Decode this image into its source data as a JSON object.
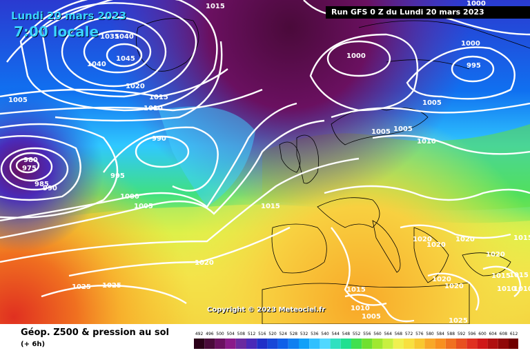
{
  "header": {
    "date": "Lundi 20 mars 2023",
    "time": "7:00 locale",
    "run": "Run GFS 0 Z du Lundi 20 mars 2023"
  },
  "copyright": "Copyright © 2023 Meteociel.fr",
  "footer": {
    "title": "Géop. Z500 & pression au sol",
    "subtitle": "(+ 6h)"
  },
  "legend": {
    "values": [
      "492",
      "496",
      "500",
      "504",
      "508",
      "512",
      "516",
      "520",
      "524",
      "528",
      "532",
      "536",
      "540",
      "544",
      "548",
      "552",
      "556",
      "560",
      "564",
      "568",
      "572",
      "576",
      "580",
      "584",
      "588",
      "592",
      "596",
      "600",
      "604",
      "608",
      "612"
    ],
    "colors": [
      "#2a0018",
      "#4a0a3a",
      "#6a1060",
      "#8a1a8a",
      "#6a2aa0",
      "#4a2ab8",
      "#2030c8",
      "#1848d8",
      "#1060e8",
      "#1080f0",
      "#10a0f8",
      "#30c0ff",
      "#50d8ff",
      "#30e0c0",
      "#20e090",
      "#40e050",
      "#70e030",
      "#a0e830",
      "#c8f040",
      "#f0f050",
      "#f8e040",
      "#f8c830",
      "#f8a828",
      "#f89020",
      "#f07020",
      "#e85020",
      "#e03020",
      "#d01818",
      "#b01010",
      "#900808",
      "#700000"
    ]
  },
  "isobar_labels": [
    {
      "text": "1015"
    },
    {
      "text": "1035"
    },
    {
      "text": "1040"
    },
    {
      "text": "1045"
    },
    {
      "text": "1040"
    },
    {
      "text": "1020"
    },
    {
      "text": "1015"
    },
    {
      "text": "1010"
    },
    {
      "text": "1005"
    },
    {
      "text": "990"
    },
    {
      "text": "980"
    },
    {
      "text": "975"
    },
    {
      "text": "985"
    },
    {
      "text": "990"
    },
    {
      "text": "995"
    },
    {
      "text": "1000"
    },
    {
      "text": "1005"
    },
    {
      "text": "1015"
    },
    {
      "text": "1020"
    },
    {
      "text": "1025"
    },
    {
      "text": "1025"
    },
    {
      "text": "1000"
    },
    {
      "text": "1000"
    },
    {
      "text": "1000"
    },
    {
      "text": "995"
    },
    {
      "text": "1005"
    },
    {
      "text": "1005"
    },
    {
      "text": "1005"
    },
    {
      "text": "1010"
    },
    {
      "text": "1020"
    },
    {
      "text": "1020"
    },
    {
      "text": "1020"
    },
    {
      "text": "1020"
    },
    {
      "text": "1015"
    },
    {
      "text": "1020"
    },
    {
      "text": "1020"
    },
    {
      "text": "1015"
    },
    {
      "text": "1015"
    },
    {
      "text": "1010"
    },
    {
      "text": "1010"
    },
    {
      "text": "1010"
    },
    {
      "text": "1005"
    },
    {
      "text": "1015"
    },
    {
      "text": "1025"
    }
  ]
}
